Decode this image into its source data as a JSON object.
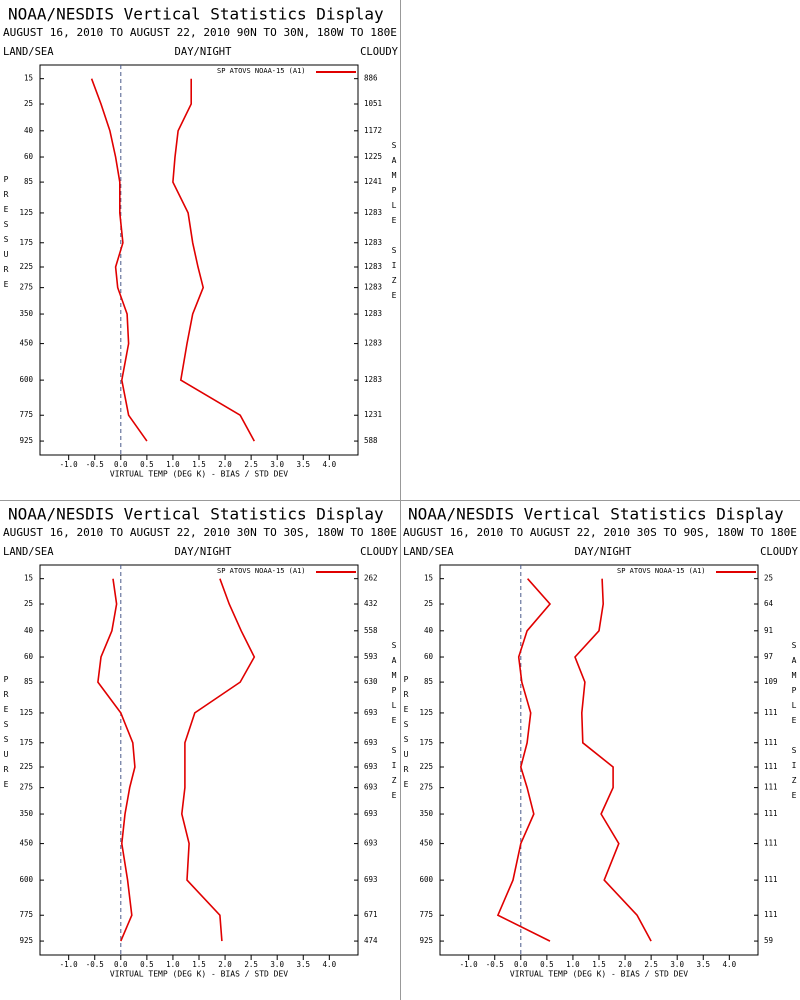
{
  "chart_data": [
    {
      "type": "line",
      "title": "NOAA/NESDIS Vertical Statistics Display",
      "subtitle": "AUGUST 16, 2010 TO AUGUST 22, 2010 90N TO 30N, 180W TO 180E",
      "left_label": "LAND/SEA",
      "center_label": "DAY/NIGHT",
      "right_label": "CLOUDY",
      "y_label": "PRESSURE",
      "y2_label": "SAMPLE SIZE",
      "x_label": "VIRTUAL TEMP (DEG K) - BIAS / STD DEV",
      "levels": [
        15,
        25,
        40,
        60,
        85,
        125,
        175,
        225,
        275,
        350,
        450,
        600,
        775,
        925
      ],
      "sample_size": [
        886,
        1051,
        1172,
        1225,
        1241,
        1283,
        1283,
        1283,
        1283,
        1283,
        1283,
        1283,
        1231,
        588
      ],
      "series": [
        {
          "name": "SP ATOVS NOAA-15 (A1)",
          "color": "#e00000",
          "bias": [
            -0.56,
            -0.38,
            -0.21,
            -0.1,
            -0.02,
            -0.02,
            0.04,
            -0.1,
            -0.06,
            0.12,
            0.15,
            0.02,
            0.15,
            0.5
          ],
          "std_dev": [
            1.35,
            1.35,
            1.1,
            1.04,
            1.0,
            1.29,
            1.38,
            1.48,
            1.58,
            1.38,
            1.27,
            1.15,
            2.29,
            2.56
          ]
        }
      ],
      "xlim": [
        -1.55,
        4.55
      ],
      "xticks": [
        {
          "value": -1,
          "label": "-1.0"
        },
        -0.5,
        {
          "value": 0,
          "label": "0.0"
        },
        0.5,
        {
          "value": 1,
          "label": "1.0"
        },
        1.5,
        {
          "value": 2,
          "label": "2.0"
        },
        2.5,
        {
          "value": 3,
          "label": "3.0"
        },
        3.5,
        {
          "value": 4,
          "label": "4.0"
        }
      ],
      "ylim": [
        11,
        1014
      ],
      "y_reversed": true,
      "zero_line": true
    },
    {
      "type": "line",
      "title": "NOAA/NESDIS Vertical Statistics Display",
      "subtitle": "AUGUST 16, 2010 TO AUGUST 22, 2010 30N TO 30S, 180W TO 180E",
      "left_label": "LAND/SEA",
      "center_label": "DAY/NIGHT",
      "right_label": "CLOUDY",
      "y_label": "PRESSURE",
      "y2_label": "SAMPLE SIZE",
      "x_label": "VIRTUAL TEMP (DEG K) - BIAS / STD DEV",
      "levels": [
        15,
        25,
        40,
        60,
        85,
        125,
        175,
        225,
        275,
        350,
        450,
        600,
        775,
        925
      ],
      "sample_size": [
        262,
        432,
        558,
        593,
        630,
        693,
        693,
        693,
        693,
        693,
        693,
        693,
        671,
        474
      ],
      "series": [
        {
          "name": "SP ATOVS NOAA-15 (A1)",
          "color": "#e00000",
          "bias": [
            -0.15,
            -0.08,
            -0.17,
            -0.38,
            -0.44,
            0,
            0.23,
            0.27,
            0.17,
            0.08,
            0.02,
            0.13,
            0.21,
            0
          ],
          "std_dev": [
            1.9,
            2.08,
            2.31,
            2.56,
            2.29,
            1.42,
            1.23,
            1.23,
            1.23,
            1.17,
            1.31,
            1.27,
            1.9,
            1.94
          ]
        }
      ],
      "xlim": [
        -1.55,
        4.55
      ],
      "xticks": [
        {
          "value": -1,
          "label": "-1.0"
        },
        -0.5,
        {
          "value": 0,
          "label": "0.0"
        },
        0.5,
        {
          "value": 1,
          "label": "1.0"
        },
        1.5,
        {
          "value": 2,
          "label": "2.0"
        },
        2.5,
        {
          "value": 3,
          "label": "3.0"
        },
        3.5,
        {
          "value": 4,
          "label": "4.0"
        }
      ],
      "ylim": [
        11,
        1014
      ],
      "y_reversed": true,
      "zero_line": true
    },
    {
      "type": "line",
      "title": "NOAA/NESDIS Vertical Statistics Display",
      "subtitle": "AUGUST 16, 2010 TO AUGUST 22, 2010 30S TO 90S, 180W TO 180E",
      "left_label": "LAND/SEA",
      "center_label": "DAY/NIGHT",
      "right_label": "CLOUDY",
      "y_label": "PRESSURE",
      "y2_label": "SAMPLE SIZE",
      "x_label": "VIRTUAL TEMP (DEG K) - BIAS / STD DEV",
      "levels": [
        15,
        25,
        40,
        60,
        85,
        125,
        175,
        225,
        275,
        350,
        450,
        600,
        775,
        925
      ],
      "sample_size": [
        25,
        64,
        91,
        97,
        109,
        111,
        111,
        111,
        111,
        111,
        111,
        111,
        111,
        59
      ],
      "series": [
        {
          "name": "SP ATOVS NOAA-15 (A1)",
          "color": "#e00000",
          "bias": [
            0.13,
            0.56,
            0.12,
            -0.04,
            0.02,
            0.19,
            0.12,
            0,
            0.12,
            0.25,
            0,
            -0.15,
            -0.44,
            0.56
          ],
          "std_dev": [
            1.56,
            1.58,
            1.5,
            1.04,
            1.23,
            1.17,
            1.19,
            1.77,
            1.77,
            1.54,
            1.88,
            1.6,
            2.23,
            2.5
          ]
        }
      ],
      "xlim": [
        -1.55,
        4.55
      ],
      "xticks": [
        {
          "value": -1,
          "label": "-1.0"
        },
        -0.5,
        {
          "value": 0,
          "label": "0.0"
        },
        0.5,
        {
          "value": 1,
          "label": "1.0"
        },
        1.5,
        {
          "value": 2,
          "label": "2.0"
        },
        2.5,
        {
          "value": 3,
          "label": "3.0"
        },
        3.5,
        {
          "value": 4,
          "label": "4.0"
        }
      ],
      "ylim": [
        11,
        1014
      ],
      "y_reversed": true,
      "zero_line": true
    }
  ]
}
